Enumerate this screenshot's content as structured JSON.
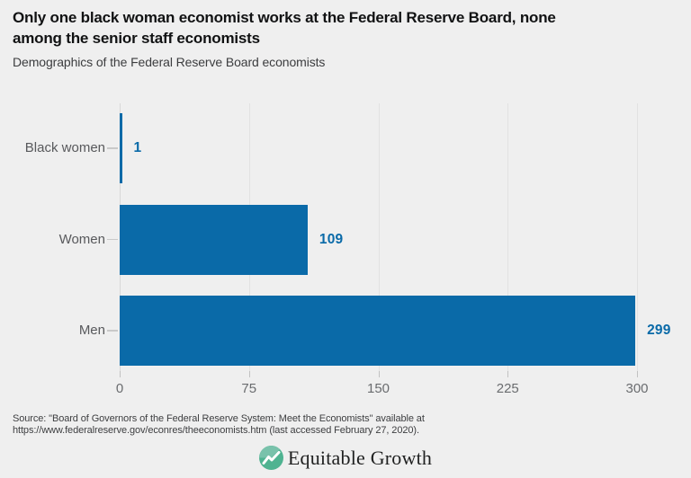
{
  "page": {
    "background": "#efefef"
  },
  "header": {
    "title_lines": [
      "Only one black woman economist works at the Federal Reserve Board, none",
      "among the senior staff economists"
    ],
    "subtitle": "Demographics of the Federal Reserve Board economists"
  },
  "chart_data": {
    "type": "bar",
    "orientation": "horizontal",
    "title": "Demographics of the Federal Reserve Board economists",
    "categories": [
      "Black women",
      "Women",
      "Men"
    ],
    "values": [
      1,
      109,
      299
    ],
    "value_labels": [
      "1",
      "109",
      "299"
    ],
    "xlim": [
      0,
      300
    ],
    "xticks": [
      "0",
      "75",
      "150",
      "225",
      "300"
    ],
    "xtick_values": [
      0,
      75,
      150,
      225,
      300
    ],
    "grid": true,
    "legend": false,
    "bar_color": "#0a6aa8",
    "value_label_color": "#0a6aa8"
  },
  "footer": {
    "source_lines": [
      "Source: \"Board of Governors of the Federal Reserve System: Meet the Economists\" available at",
      "https://www.federalreserve.gov/econres/theeconomists.htm (last accessed February 27, 2020)."
    ],
    "logo": {
      "text": "Equitable Growth",
      "icon_color": "#4fb391",
      "icon_color_light": "#79c2ab"
    }
  }
}
